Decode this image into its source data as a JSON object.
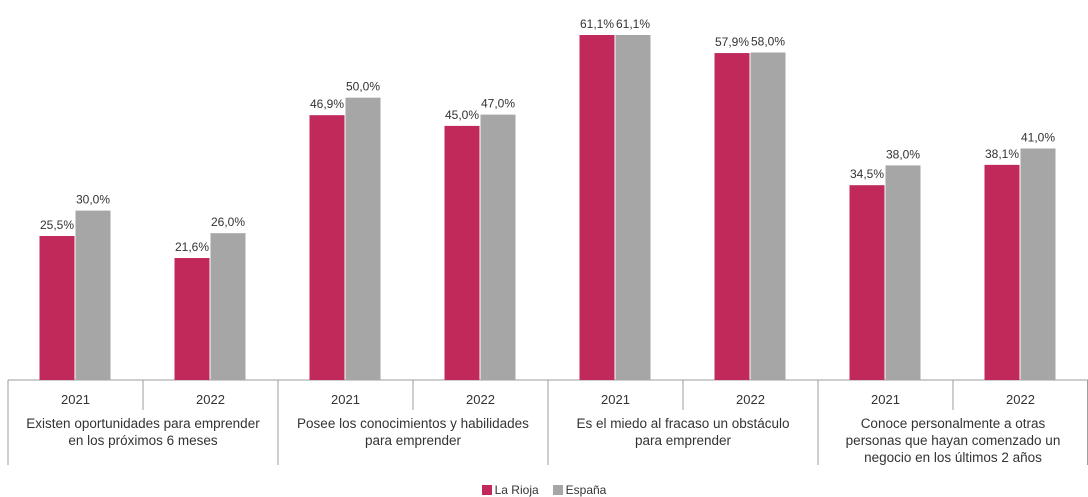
{
  "chart_data": {
    "type": "bar",
    "groups": [
      {
        "label_lines": [
          "Existen oportunidades para emprender",
          "en los próximos 6 meses"
        ],
        "years": [
          {
            "year": "2021",
            "values": [
              25.5,
              30.0
            ],
            "labels": [
              "25,5%",
              "30,0%"
            ]
          },
          {
            "year": "2022",
            "values": [
              21.6,
              26.0
            ],
            "labels": [
              "21,6%",
              "26,0%"
            ]
          }
        ]
      },
      {
        "label_lines": [
          "Posee los conocimientos y habilidades",
          "para emprender"
        ],
        "years": [
          {
            "year": "2021",
            "values": [
              46.9,
              50.0
            ],
            "labels": [
              "46,9%",
              "50,0%"
            ]
          },
          {
            "year": "2022",
            "values": [
              45.0,
              47.0
            ],
            "labels": [
              "45,0%",
              "47,0%"
            ]
          }
        ]
      },
      {
        "label_lines": [
          "Es el miedo al fracaso un obstáculo",
          "para emprender"
        ],
        "years": [
          {
            "year": "2021",
            "values": [
              61.1,
              61.1
            ],
            "labels": [
              "61,1%",
              "61,1%"
            ]
          },
          {
            "year": "2022",
            "values": [
              57.9,
              58.0
            ],
            "labels": [
              "57,9%",
              "58,0%"
            ]
          }
        ]
      },
      {
        "label_lines": [
          "Conoce personalmente a otras",
          "personas que hayan comenzado un",
          "negocio en los últimos 2 años"
        ],
        "years": [
          {
            "year": "2021",
            "values": [
              34.5,
              38.0
            ],
            "labels": [
              "34,5%",
              "38,0%"
            ]
          },
          {
            "year": "2022",
            "values": [
              38.1,
              41.0
            ],
            "labels": [
              "38,1%",
              "41,0%"
            ]
          }
        ]
      }
    ],
    "series": [
      {
        "name": "La Rioja",
        "color": "#C0295A"
      },
      {
        "name": "España",
        "color": "#A6A6A6"
      }
    ],
    "ylim": [
      0,
      65
    ],
    "grid": false,
    "legend_position": "bottom-center"
  }
}
